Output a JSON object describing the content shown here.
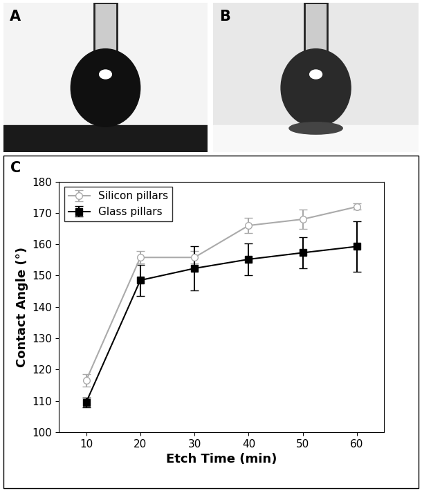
{
  "panel_labels": [
    "A",
    "B",
    "C"
  ],
  "chart_data": {
    "type": "line",
    "x_label": "Etch Time (min)",
    "y_label": "Contact Angle (°)",
    "x": [
      10,
      20,
      30,
      40,
      50,
      60
    ],
    "series": [
      {
        "name": "Silicon pillars",
        "color": "#aaaaaa",
        "marker": "open_circle",
        "values": [
          116.5,
          155.8,
          155.8,
          166.0,
          168.0,
          172.0
        ],
        "errors": [
          2.0,
          2.0,
          2.0,
          2.5,
          3.0,
          1.0
        ]
      },
      {
        "name": "Glass pillars",
        "color": "#000000",
        "marker": "square",
        "values": [
          109.5,
          148.5,
          152.3,
          155.2,
          157.3,
          159.3
        ],
        "errors": [
          1.5,
          5.0,
          7.0,
          5.0,
          5.0,
          8.0
        ]
      }
    ],
    "xlim": [
      5,
      65
    ],
    "xticks": [
      10,
      20,
      30,
      40,
      50,
      60
    ],
    "ylim": [
      100,
      180
    ],
    "yticks": [
      100,
      110,
      120,
      130,
      140,
      150,
      160,
      170,
      180
    ],
    "legend": "upper left",
    "grid": false
  }
}
